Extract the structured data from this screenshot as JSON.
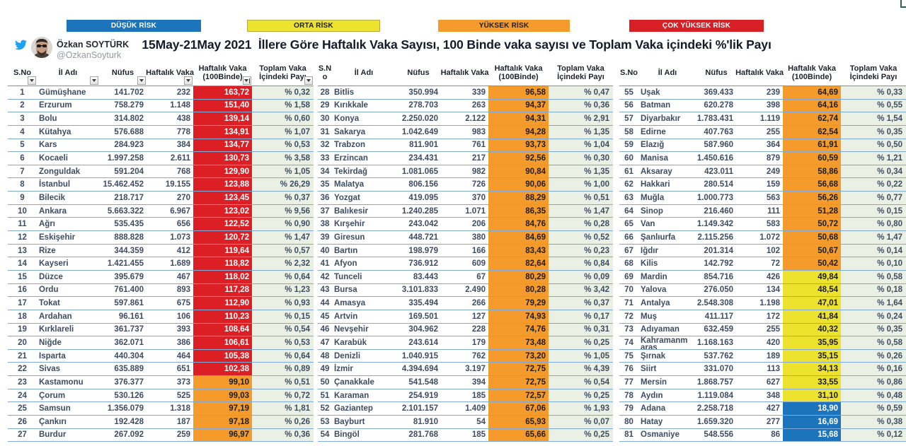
{
  "title": "15May-21May 2021  İllere Göre Haftalık Vaka Sayısı, 100 Binde vaka sayısı ve Toplam Vaka içindeki %'lik Payı",
  "profile": {
    "name": "Özkan SOYTÜRK",
    "handle": "@OzkanSoyturk"
  },
  "legend": {
    "items": [
      {
        "label": "DÜŞÜK RİSK",
        "color": "#1c74bc"
      },
      {
        "label": "ORTA RİSK",
        "color": "#ede32f"
      },
      {
        "label": "YÜKSEK RİSK",
        "color": "#f59b2c"
      },
      {
        "label": "ÇOK YÜKSEK RİSK",
        "color": "#d91f26"
      }
    ]
  },
  "risk_colors": {
    "red": {
      "bg": "#dc1e25",
      "text": "#ffffff"
    },
    "orange": {
      "bg": "#f59b2c",
      "text": "#1d1d1d"
    },
    "yellow": {
      "bg": "#ede32f",
      "text": "#1d1d1d"
    },
    "blue": {
      "bg": "#1c74bc",
      "text": "#ffffff"
    }
  },
  "chart_data": {
    "type": "table",
    "title": "15May-21May 2021  İllere Göre Haftalık Vaka Sayısı, 100 Binde vaka sayısı ve Toplam Vaka içindeki %'lik Payı",
    "columns": [
      "S.No",
      "İl Adı",
      "Nüfus",
      "Haftalık Vaka",
      "Haftalık Vaka (100Binde)",
      "Toplam Vaka İçindeki Payı"
    ],
    "legend_entries": [
      "DÜŞÜK RİSK",
      "ORTA RİSK",
      "YÜKSEK RİSK",
      "ÇOK YÜKSEK RİSK"
    ],
    "groups": [
      {
        "rows": [
          [
            "1",
            "Gümüşhane",
            "141.702",
            "232",
            "163,72",
            "% 0,32",
            "red"
          ],
          [
            "2",
            "Erzurum",
            "758.279",
            "1.148",
            "151,40",
            "% 1,58",
            "red"
          ],
          [
            "3",
            "Bolu",
            "314.802",
            "438",
            "139,14",
            "% 0,60",
            "red"
          ],
          [
            "4",
            "Kütahya",
            "576.688",
            "778",
            "134,91",
            "% 1,07",
            "red"
          ],
          [
            "5",
            "Kars",
            "284.923",
            "384",
            "134,77",
            "% 0,53",
            "red"
          ],
          [
            "6",
            "Kocaeli",
            "1.997.258",
            "2.611",
            "130,73",
            "% 3,58",
            "red"
          ],
          [
            "7",
            "Zonguldak",
            "591.204",
            "768",
            "129,90",
            "% 1,05",
            "red"
          ],
          [
            "8",
            "İstanbul",
            "15.462.452",
            "19.155",
            "123,88",
            "% 26,29",
            "red"
          ],
          [
            "9",
            "Bilecik",
            "218.717",
            "270",
            "123,45",
            "% 0,37",
            "red"
          ],
          [
            "10",
            "Ankara",
            "5.663.322",
            "6.967",
            "123,02",
            "% 9,56",
            "red"
          ],
          [
            "11",
            "Ağrı",
            "535.435",
            "656",
            "122,52",
            "% 0,90",
            "red"
          ],
          [
            "12",
            "Eskişehir",
            "888.828",
            "1.073",
            "120,72",
            "% 1,47",
            "red"
          ],
          [
            "13",
            "Rize",
            "344.359",
            "412",
            "119,64",
            "% 0,57",
            "red"
          ],
          [
            "14",
            "Kayseri",
            "1.421.455",
            "1.689",
            "118,82",
            "% 2,32",
            "red"
          ],
          [
            "15",
            "Düzce",
            "395.679",
            "467",
            "118,02",
            "% 0,64",
            "red"
          ],
          [
            "16",
            "Ordu",
            "761.400",
            "893",
            "117,28",
            "% 1,23",
            "red"
          ],
          [
            "17",
            "Tokat",
            "597.861",
            "675",
            "112,90",
            "% 0,93",
            "red"
          ],
          [
            "18",
            "Ardahan",
            "96.161",
            "106",
            "110,23",
            "% 0,15",
            "red"
          ],
          [
            "19",
            "Kırklareli",
            "361.737",
            "393",
            "108,64",
            "% 0,54",
            "red"
          ],
          [
            "20",
            "Niğde",
            "362.071",
            "386",
            "106,61",
            "% 0,53",
            "red"
          ],
          [
            "21",
            "Isparta",
            "440.304",
            "464",
            "105,38",
            "% 0,64",
            "red"
          ],
          [
            "22",
            "Sivas",
            "635.889",
            "651",
            "102,38",
            "% 0,89",
            "red"
          ],
          [
            "23",
            "Kastamonu",
            "376.377",
            "373",
            "99,10",
            "% 0,51",
            "orange"
          ],
          [
            "24",
            "Çorum",
            "530.126",
            "525",
            "99,03",
            "% 0,72",
            "orange"
          ],
          [
            "25",
            "Samsun",
            "1.356.079",
            "1.318",
            "97,19",
            "% 1,81",
            "orange"
          ],
          [
            "26",
            "Çankırı",
            "192.428",
            "187",
            "97,18",
            "% 0,26",
            "orange"
          ],
          [
            "27",
            "Burdur",
            "267.092",
            "259",
            "96,97",
            "% 0,36",
            "orange"
          ]
        ]
      },
      {
        "rows": [
          [
            "28",
            "Bitlis",
            "350.994",
            "339",
            "96,58",
            "% 0,47",
            "orange"
          ],
          [
            "29",
            "Kırıkkale",
            "278.703",
            "263",
            "94,37",
            "% 0,36",
            "orange"
          ],
          [
            "30",
            "Konya",
            "2.250.020",
            "2.122",
            "94,31",
            "% 2,91",
            "orange"
          ],
          [
            "31",
            "Sakarya",
            "1.042.649",
            "983",
            "94,28",
            "% 1,35",
            "orange"
          ],
          [
            "32",
            "Trabzon",
            "811.901",
            "761",
            "93,73",
            "% 1,04",
            "orange"
          ],
          [
            "33",
            "Erzincan",
            "234.431",
            "217",
            "92,56",
            "% 0,30",
            "orange"
          ],
          [
            "34",
            "Tekirdağ",
            "1.081.065",
            "982",
            "90,84",
            "% 1,35",
            "orange"
          ],
          [
            "35",
            "Malatya",
            "806.156",
            "726",
            "90,06",
            "% 1,00",
            "orange"
          ],
          [
            "36",
            "Yozgat",
            "419.095",
            "370",
            "88,29",
            "% 0,51",
            "orange"
          ],
          [
            "37",
            "Balıkesir",
            "1.240.285",
            "1.071",
            "86,35",
            "% 1,47",
            "orange"
          ],
          [
            "38",
            "Kırşehir",
            "243.042",
            "206",
            "84,76",
            "% 0,28",
            "orange"
          ],
          [
            "39",
            "Giresun",
            "448.721",
            "380",
            "84,69",
            "% 0,52",
            "orange"
          ],
          [
            "40",
            "Bartın",
            "198.979",
            "166",
            "83,43",
            "% 0,23",
            "orange"
          ],
          [
            "41",
            "Afyon",
            "736.912",
            "609",
            "82,64",
            "% 0,84",
            "orange"
          ],
          [
            "42",
            "Tunceli",
            "83.443",
            "67",
            "80,29",
            "% 0,09",
            "orange"
          ],
          [
            "43",
            "Bursa",
            "3.101.833",
            "2.490",
            "80,28",
            "% 3,42",
            "orange"
          ],
          [
            "44",
            "Amasya",
            "335.494",
            "266",
            "79,29",
            "% 0,37",
            "orange"
          ],
          [
            "45",
            "Artvin",
            "169.501",
            "127",
            "74,93",
            "% 0,17",
            "orange"
          ],
          [
            "46",
            "Nevşehir",
            "304.962",
            "228",
            "74,76",
            "% 0,31",
            "orange"
          ],
          [
            "47",
            "Karabük",
            "243.614",
            "179",
            "73,48",
            "% 0,25",
            "orange"
          ],
          [
            "48",
            "Denizli",
            "1.040.915",
            "762",
            "73,20",
            "% 1,05",
            "orange"
          ],
          [
            "49",
            "İzmir",
            "4.394.694",
            "3.197",
            "72,75",
            "% 4,39",
            "orange"
          ],
          [
            "50",
            "Çanakkale",
            "541.548",
            "394",
            "72,75",
            "% 0,54",
            "orange"
          ],
          [
            "51",
            "Karaman",
            "254.919",
            "185",
            "72,57",
            "% 0,25",
            "orange"
          ],
          [
            "52",
            "Gaziantep",
            "2.101.157",
            "1.409",
            "67,06",
            "% 1,93",
            "orange"
          ],
          [
            "53",
            "Bayburt",
            "81.910",
            "54",
            "65,93",
            "% 0,07",
            "orange"
          ],
          [
            "54",
            "Bingöl",
            "281.768",
            "185",
            "65,66",
            "% 0,25",
            "orange"
          ]
        ]
      },
      {
        "rows": [
          [
            "55",
            "Uşak",
            "369.433",
            "239",
            "64,69",
            "% 0,33",
            "orange"
          ],
          [
            "56",
            "Batman",
            "620.278",
            "398",
            "64,16",
            "% 0,55",
            "orange"
          ],
          [
            "57",
            "Diyarbakır",
            "1.783.431",
            "1.119",
            "62,74",
            "% 1,54",
            "orange"
          ],
          [
            "58",
            "Edirne",
            "407.763",
            "255",
            "62,54",
            "% 0,35",
            "orange"
          ],
          [
            "59",
            "Elazığ",
            "587.960",
            "364",
            "61,91",
            "% 0,50",
            "orange"
          ],
          [
            "60",
            "Manisa",
            "1.450.616",
            "879",
            "60,59",
            "% 1,21",
            "orange"
          ],
          [
            "61",
            "Aksaray",
            "423.011",
            "249",
            "58,86",
            "% 0,34",
            "orange"
          ],
          [
            "62",
            "Hakkari",
            "280.514",
            "159",
            "56,68",
            "% 0,22",
            "orange"
          ],
          [
            "63",
            "Muğla",
            "1.000.773",
            "563",
            "56,26",
            "% 0,77",
            "orange"
          ],
          [
            "64",
            "Sinop",
            "216.460",
            "111",
            "51,28",
            "% 0,15",
            "orange"
          ],
          [
            "65",
            "Van",
            "1.149.342",
            "583",
            "50,72",
            "% 0,80",
            "orange"
          ],
          [
            "66",
            "Şanlıurfa",
            "2.115.256",
            "1.072",
            "50,68",
            "% 1,47",
            "orange"
          ],
          [
            "67",
            "Iğdır",
            "201.314",
            "102",
            "50,67",
            "% 0,14",
            "orange"
          ],
          [
            "68",
            "Kilis",
            "142.792",
            "72",
            "50,42",
            "% 0,10",
            "orange"
          ],
          [
            "69",
            "Mardin",
            "854.716",
            "426",
            "49,84",
            "% 0,58",
            "yellow"
          ],
          [
            "70",
            "Yalova",
            "276.050",
            "134",
            "48,54",
            "% 0,18",
            "yellow"
          ],
          [
            "71",
            "Antalya",
            "2.548.308",
            "1.198",
            "47,01",
            "% 1,64",
            "yellow"
          ],
          [
            "72",
            "Muş",
            "411.117",
            "172",
            "41,84",
            "% 0,24",
            "yellow"
          ],
          [
            "73",
            "Adıyaman",
            "632.459",
            "255",
            "40,32",
            "% 0,35",
            "yellow"
          ],
          [
            "74",
            "Kahramanmaraş",
            "1.168.163",
            "420",
            "35,95",
            "% 0,58",
            "yellow"
          ],
          [
            "75",
            "Şırnak",
            "537.762",
            "189",
            "35,15",
            "% 0,26",
            "yellow"
          ],
          [
            "76",
            "Siirt",
            "331.070",
            "113",
            "34,13",
            "% 0,16",
            "yellow"
          ],
          [
            "77",
            "Mersin",
            "1.868.757",
            "627",
            "33,55",
            "% 0,86",
            "yellow"
          ],
          [
            "78",
            "Aydın",
            "1.119.084",
            "348",
            "31,10",
            "% 0,48",
            "yellow"
          ],
          [
            "79",
            "Adana",
            "2.258.718",
            "427",
            "18,90",
            "% 0,59",
            "blue"
          ],
          [
            "80",
            "Hatay",
            "1.659.320",
            "277",
            "16,69",
            "% 0,38",
            "blue"
          ],
          [
            "81",
            "Osmaniye",
            "548.556",
            "86",
            "15,68",
            "% 0,12",
            "blue"
          ]
        ]
      }
    ]
  }
}
